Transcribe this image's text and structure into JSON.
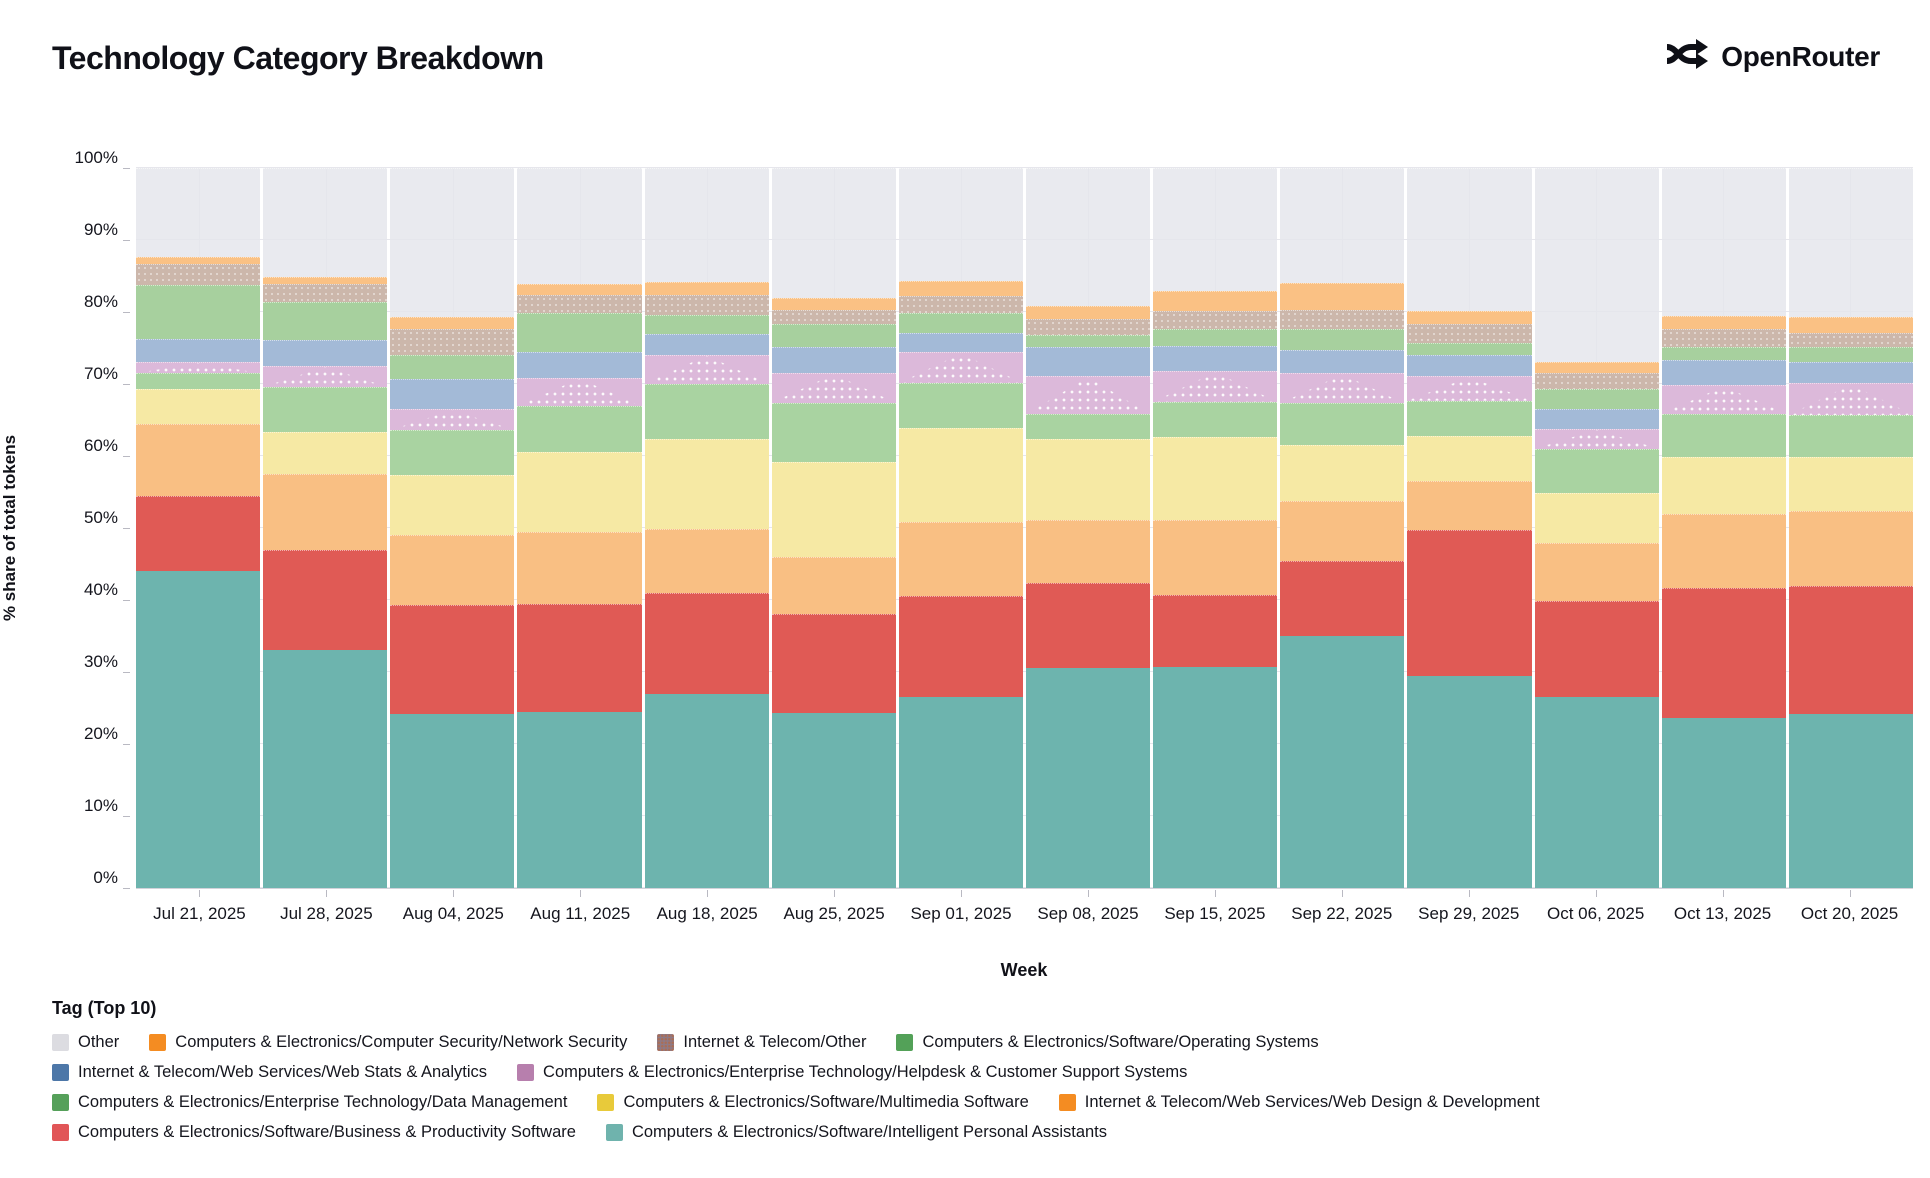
{
  "header": {
    "title": "Technology Category Breakdown",
    "brand": "OpenRouter"
  },
  "chart_data": {
    "type": "bar",
    "stacked": true,
    "title": "Technology Category Breakdown",
    "xlabel": "Week",
    "ylabel": "% share of total tokens",
    "ylim": [
      0,
      100
    ],
    "grid": true,
    "y_ticks": [
      "0%",
      "10%",
      "20%",
      "30%",
      "40%",
      "50%",
      "60%",
      "70%",
      "80%",
      "90%",
      "100%"
    ],
    "categories": [
      "Jul 21, 2025",
      "Jul 28, 2025",
      "Aug 04, 2025",
      "Aug 11, 2025",
      "Aug 18, 2025",
      "Aug 25, 2025",
      "Sep 01, 2025",
      "Sep 08, 2025",
      "Sep 15, 2025",
      "Sep 22, 2025",
      "Sep 29, 2025",
      "Oct 06, 2025",
      "Oct 13, 2025",
      "Oct 20, 2025"
    ],
    "series": [
      {
        "id": "ipa",
        "name": "Computers & Electronics/Software/Intelligent Personal Assistants",
        "color": "#6db4ae",
        "legend_color": "#6fb3ad",
        "decal": "none",
        "values": [
          44.0,
          33.0,
          24.2,
          24.4,
          26.9,
          24.3,
          26.5,
          30.6,
          30.7,
          35.0,
          29.4,
          26.5,
          23.6,
          24.2
        ]
      },
      {
        "id": "bp",
        "name": "Computers & Electronics/Software/Business & Productivity Software",
        "color": "#e05a55",
        "legend_color": "#e15557",
        "decal": "none",
        "values": [
          10.5,
          14.0,
          15.1,
          15.1,
          14.1,
          13.7,
          14.1,
          11.7,
          10.0,
          10.4,
          20.3,
          13.4,
          18.1,
          17.7
        ]
      },
      {
        "id": "webdesign",
        "name": "Internet & Telecom/Web Services/Web Design & Development",
        "color": "#f9bf83",
        "legend_color": "#f48c22",
        "decal": "none",
        "values": [
          9.9,
          10.5,
          9.7,
          10.0,
          8.8,
          8.0,
          10.3,
          8.8,
          10.4,
          8.3,
          6.9,
          8.0,
          10.3,
          10.4
        ]
      },
      {
        "id": "multimedia",
        "name": "Computers & Electronics/Software/Multimedia Software",
        "color": "#f6e9a4",
        "legend_color": "#e8ca3a",
        "decal": "none",
        "values": [
          4.9,
          5.9,
          8.3,
          11.0,
          12.6,
          13.2,
          13.0,
          11.3,
          11.6,
          7.8,
          6.2,
          6.9,
          7.8,
          7.6
        ]
      },
      {
        "id": "datamgmt",
        "name": "Computers & Electronics/Enterprise Technology/Data Management",
        "color": "#a9d3a1",
        "legend_color": "#55a05a",
        "decal": "none",
        "values": [
          2.2,
          6.2,
          6.3,
          6.4,
          7.6,
          8.2,
          6.2,
          3.4,
          4.8,
          5.8,
          4.9,
          6.2,
          6.1,
          5.8
        ]
      },
      {
        "id": "helpdesk",
        "name": "Computers & Electronics/Enterprise Technology/Helpdesk & Customer Support Systems",
        "color": "#dcb9da",
        "legend_color": "#b77fad",
        "decal": "triangle",
        "values": [
          1.6,
          2.9,
          2.9,
          4.0,
          4.1,
          4.1,
          4.3,
          5.3,
          4.3,
          4.2,
          3.4,
          2.8,
          3.9,
          4.4
        ]
      },
      {
        "id": "webstats",
        "name": "Internet & Telecom/Web Services/Web Stats & Analytics",
        "color": "#a3bad7",
        "legend_color": "#4d77a8",
        "decal": "none",
        "values": [
          3.1,
          3.6,
          4.2,
          3.5,
          2.9,
          3.6,
          2.7,
          4.1,
          3.5,
          3.2,
          2.9,
          2.8,
          3.5,
          3.0
        ]
      },
      {
        "id": "os",
        "name": "Computers & Electronics/Software/Operating Systems",
        "color": "#a7d09e",
        "legend_color": "#53a158",
        "decal": "none",
        "values": [
          7.6,
          5.3,
          3.4,
          5.4,
          2.6,
          3.2,
          2.7,
          1.6,
          2.3,
          3.0,
          1.7,
          2.7,
          1.9,
          2.0
        ]
      },
      {
        "id": "it_other",
        "name": "Internet & Telecom/Other",
        "color": "#ccb7ab",
        "legend_color": "#8f7a85",
        "decal": "dots",
        "values": [
          2.9,
          2.5,
          3.5,
          2.6,
          2.8,
          2.0,
          2.4,
          2.3,
          2.6,
          2.6,
          2.6,
          2.2,
          2.4,
          2.0
        ]
      },
      {
        "id": "netsec",
        "name": "Computers & Electronics/Computer Security/Network Security",
        "color": "#fac184",
        "legend_color": "#f48c22",
        "decal": "none",
        "values": [
          1.0,
          1.0,
          1.7,
          1.5,
          1.8,
          1.6,
          2.1,
          1.8,
          2.7,
          3.8,
          1.9,
          1.6,
          1.9,
          2.2
        ]
      },
      {
        "id": "other",
        "name": "Other",
        "color": "rgba(228,229,236,0.82)",
        "legend_color": "#dcdce1",
        "decal": "none",
        "values": [
          12.3,
          15.1,
          20.7,
          16.1,
          15.8,
          18.1,
          15.7,
          19.1,
          17.1,
          15.9,
          19.8,
          26.9,
          20.5,
          20.7
        ]
      }
    ],
    "legend_position": "bottom"
  },
  "legend": {
    "title": "Tag (Top 10)",
    "rows": [
      [
        "other",
        "netsec",
        "it_other",
        "os"
      ],
      [
        "webstats",
        "helpdesk"
      ],
      [
        "datamgmt",
        "multimedia",
        "webdesign"
      ],
      [
        "bp",
        "ipa"
      ]
    ]
  }
}
